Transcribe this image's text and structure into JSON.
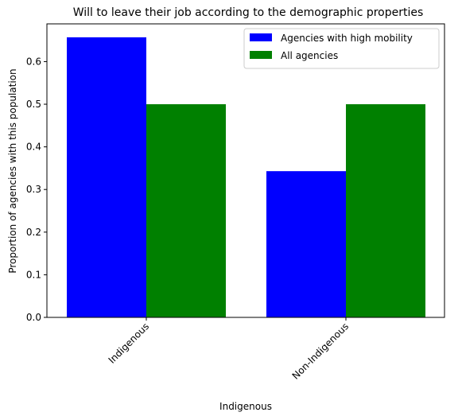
{
  "chart_data": {
    "type": "bar",
    "title": "Will to leave their job according to the demographic properties",
    "xlabel": "Indigenous",
    "ylabel": "Proportion of agencies with this population",
    "categories": [
      "Indigenous",
      "Non-Indigenous"
    ],
    "series": [
      {
        "name": "Agencies with high mobility",
        "values": [
          0.657,
          0.343
        ],
        "color": "#0000ff"
      },
      {
        "name": "All agencies",
        "values": [
          0.5,
          0.5
        ],
        "color": "#008000"
      }
    ],
    "ylim": [
      0,
      0.6885
    ],
    "yticks": [
      "0.0",
      "0.1",
      "0.2",
      "0.3",
      "0.4",
      "0.5",
      "0.6"
    ],
    "grid": false,
    "legend_position": "top-right"
  }
}
